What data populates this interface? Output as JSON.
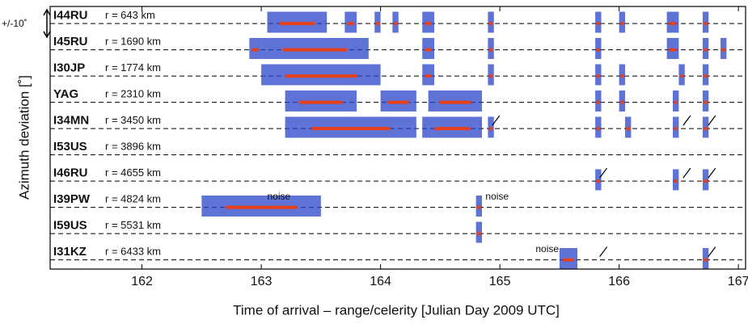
{
  "chart_data": {
    "type": "station-detections",
    "xlabel": "Time of arrival – range/celerity [Julian Day 2009 UTC]",
    "ylabel": "Azimuth deviation [˚]",
    "band_label": "+/-10˚",
    "xlim": [
      161.23,
      167.06
    ],
    "xticks": [
      162,
      163,
      164,
      165,
      166,
      167
    ],
    "color": "#2a44c8",
    "core_color": "#e8401a",
    "stations": [
      {
        "name": "I44RU",
        "distance": "r = 643 km",
        "detections": [
          [
            163.05,
            163.55
          ],
          [
            163.7,
            163.8
          ],
          [
            163.95,
            164.0
          ],
          [
            164.1,
            164.15
          ],
          [
            164.35,
            164.45
          ],
          [
            164.9,
            164.95
          ],
          [
            165.8,
            165.85
          ],
          [
            166.0,
            166.05
          ],
          [
            166.4,
            166.5
          ],
          [
            166.7,
            166.75
          ]
        ],
        "arrows": [],
        "notes": []
      },
      {
        "name": "I45RU",
        "distance": "r = 1690 km",
        "detections": [
          [
            162.9,
            163.0
          ],
          [
            163.0,
            163.9
          ],
          [
            164.35,
            164.45
          ],
          [
            164.9,
            164.95
          ],
          [
            165.8,
            165.85
          ],
          [
            166.4,
            166.5
          ],
          [
            166.7,
            166.75
          ],
          [
            166.85,
            166.9
          ]
        ],
        "arrows": [],
        "notes": []
      },
      {
        "name": "I30JP",
        "distance": "r = 1774 km",
        "detections": [
          [
            163.0,
            164.0
          ],
          [
            164.35,
            164.45
          ],
          [
            164.9,
            164.95
          ],
          [
            165.8,
            165.85
          ],
          [
            166.0,
            166.05
          ],
          [
            166.5,
            166.55
          ],
          [
            166.7,
            166.75
          ]
        ],
        "arrows": [],
        "notes": []
      },
      {
        "name": "YAG",
        "distance": "r = 2310 km",
        "detections": [
          [
            163.2,
            163.8
          ],
          [
            164.0,
            164.3
          ],
          [
            164.4,
            164.85
          ],
          [
            165.8,
            165.85
          ],
          [
            166.0,
            166.05
          ],
          [
            166.45,
            166.5
          ],
          [
            166.7,
            166.75
          ]
        ],
        "arrows": [],
        "notes": []
      },
      {
        "name": "I34MN",
        "distance": "r = 3450 km",
        "detections": [
          [
            163.2,
            164.3
          ],
          [
            164.35,
            164.85
          ],
          [
            164.9,
            164.95
          ],
          [
            165.8,
            165.85
          ],
          [
            166.05,
            166.1
          ],
          [
            166.45,
            166.5
          ],
          [
            166.7,
            166.75
          ]
        ],
        "arrows": [
          164.93,
          166.53,
          166.74
        ],
        "notes": []
      },
      {
        "name": "I53US",
        "distance": "r = 3896 km",
        "detections": [],
        "arrows": [],
        "notes": []
      },
      {
        "name": "I46RU",
        "distance": "r = 4655 km",
        "detections": [
          [
            165.8,
            165.85
          ],
          [
            166.45,
            166.5
          ],
          [
            166.7,
            166.75
          ]
        ],
        "arrows": [
          165.83,
          166.53,
          166.74
        ],
        "notes": []
      },
      {
        "name": "I39PW",
        "distance": "r = 4824 km",
        "detections": [
          [
            162.5,
            163.5
          ],
          [
            164.8,
            164.85
          ]
        ],
        "arrows": [],
        "notes": [
          {
            "text": "noise",
            "x": 163.05
          },
          {
            "text": "noise",
            "x": 164.88
          }
        ]
      },
      {
        "name": "I59US",
        "distance": "r = 5531 km",
        "detections": [
          [
            164.8,
            164.85
          ]
        ],
        "arrows": [],
        "notes": []
      },
      {
        "name": "I31KZ",
        "distance": "r = 6433 km",
        "detections": [
          [
            165.5,
            165.65
          ],
          [
            166.7,
            166.75
          ]
        ],
        "arrows": [
          165.83,
          166.74
        ],
        "notes": [
          {
            "text": "noise",
            "x": 165.3
          }
        ]
      }
    ]
  }
}
